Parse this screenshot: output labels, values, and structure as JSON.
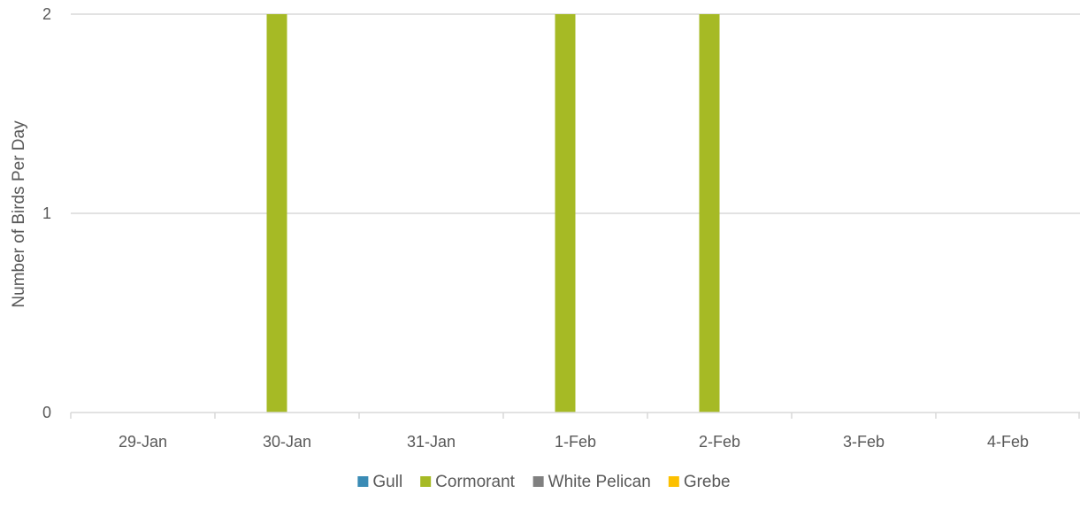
{
  "chart_data": {
    "type": "bar",
    "title": "",
    "xlabel": "",
    "ylabel": "Number of Birds Per Day",
    "ylim": [
      0,
      2
    ],
    "yticks": [
      0,
      1,
      2
    ],
    "grid": true,
    "legend_position": "bottom",
    "categories": [
      "29-Jan",
      "30-Jan",
      "31-Jan",
      "1-Feb",
      "2-Feb",
      "3-Feb",
      "4-Feb"
    ],
    "series": [
      {
        "name": "Gull",
        "color": "#3a8bb5",
        "values": [
          0,
          0,
          0,
          0,
          0,
          0,
          0
        ]
      },
      {
        "name": "Cormorant",
        "color": "#a6ba25",
        "values": [
          0,
          2,
          0,
          2,
          2,
          0,
          0
        ]
      },
      {
        "name": "White Pelican",
        "color": "#808080",
        "values": [
          0,
          0,
          0,
          0,
          0,
          0,
          0
        ]
      },
      {
        "name": "Grebe",
        "color": "#fcc000",
        "values": [
          0,
          0,
          0,
          0,
          0,
          0,
          0
        ]
      }
    ]
  }
}
